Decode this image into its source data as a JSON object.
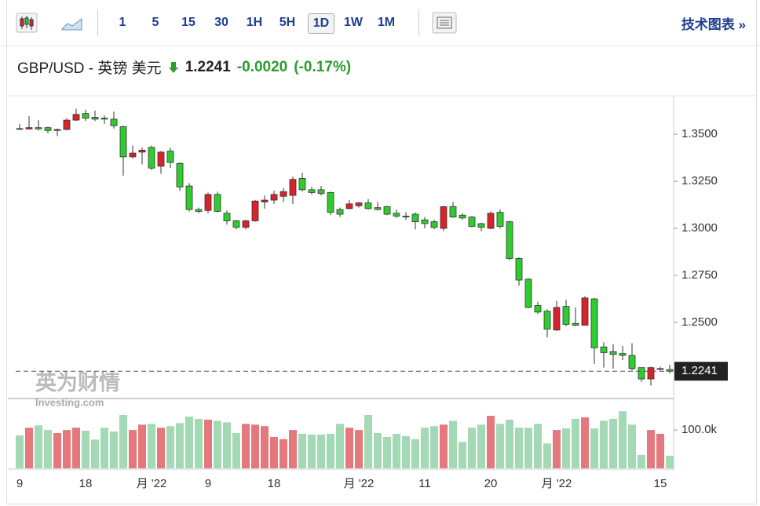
{
  "toolbar": {
    "intervals": [
      "1",
      "5",
      "15",
      "30",
      "1H",
      "5H",
      "1D",
      "1W",
      "1M"
    ],
    "active": "1D",
    "tech_link": "技术图表 »"
  },
  "header": {
    "symbol": "GBP/USD - 英镑 美元",
    "change": "-0.0020",
    "change_pct": "(-0.17%)"
  },
  "watermark": {
    "brand": "英为财情",
    "site": "Investing.com"
  },
  "chart_data": {
    "type": "candlestick",
    "categories": [
      "9",
      null,
      null,
      null,
      null,
      null,
      null,
      "18",
      null,
      null,
      null,
      null,
      null,
      null,
      "月 '22",
      null,
      null,
      null,
      null,
      null,
      "9",
      null,
      null,
      null,
      null,
      null,
      null,
      "18",
      null,
      null,
      null,
      null,
      null,
      null,
      null,
      null,
      "月 '22",
      null,
      null,
      null,
      null,
      null,
      null,
      "11",
      null,
      null,
      null,
      null,
      null,
      null,
      "20",
      null,
      null,
      null,
      null,
      null,
      null,
      "月 '22",
      null,
      null,
      null,
      null,
      null,
      null,
      null,
      null,
      null,
      null,
      "15",
      null
    ],
    "open": [
      1.353,
      1.3528,
      1.3535,
      1.3535,
      1.352,
      1.3525,
      1.3575,
      1.361,
      1.359,
      1.3585,
      1.358,
      1.354,
      1.338,
      1.3405,
      1.343,
      1.333,
      1.341,
      1.3345,
      1.3225,
      1.31,
      1.3095,
      1.318,
      1.308,
      1.304,
      1.3005,
      1.304,
      1.314,
      1.315,
      1.317,
      1.3175,
      1.3265,
      1.3205,
      1.3205,
      1.319,
      1.31,
      1.3105,
      1.312,
      1.3135,
      1.311,
      1.3115,
      1.308,
      1.3065,
      1.3075,
      1.3045,
      1.3035,
      1.3,
      1.3115,
      1.307,
      1.306,
      1.3025,
      1.3,
      1.3085,
      1.3035,
      1.284,
      1.273,
      1.259,
      1.256,
      1.246,
      1.2585,
      1.2495,
      1.2485,
      1.2625,
      1.237,
      1.2345,
      1.2335,
      1.2325,
      1.226,
      1.22,
      1.2255,
      1.225
    ],
    "high": [
      1.3555,
      1.3595,
      1.3575,
      1.354,
      1.353,
      1.3585,
      1.3635,
      1.363,
      1.3625,
      1.36,
      1.362,
      1.3545,
      1.344,
      1.343,
      1.344,
      1.341,
      1.343,
      1.335,
      1.324,
      1.311,
      1.319,
      1.3195,
      1.3095,
      1.3045,
      1.3045,
      1.315,
      1.3175,
      1.32,
      1.3215,
      1.3275,
      1.3295,
      1.322,
      1.3225,
      1.3195,
      1.311,
      1.315,
      1.314,
      1.3155,
      1.314,
      1.312,
      1.31,
      1.3085,
      1.3085,
      1.306,
      1.3045,
      1.312,
      1.314,
      1.308,
      1.3065,
      1.303,
      1.309,
      1.31,
      1.304,
      1.2845,
      1.2735,
      1.261,
      1.257,
      1.2615,
      1.262,
      1.258,
      1.264,
      1.263,
      1.2395,
      1.2385,
      1.2375,
      1.239,
      1.226,
      1.2265,
      1.2265,
      1.2275
    ],
    "low": [
      1.3522,
      1.3525,
      1.352,
      1.3505,
      1.349,
      1.352,
      1.357,
      1.357,
      1.357,
      1.3555,
      1.353,
      1.328,
      1.337,
      1.334,
      1.331,
      1.329,
      1.332,
      1.32,
      1.309,
      1.308,
      1.308,
      1.3085,
      1.302,
      1.2995,
      1.2995,
      1.3035,
      1.3105,
      1.313,
      1.314,
      1.313,
      1.3195,
      1.318,
      1.3175,
      1.307,
      1.306,
      1.31,
      1.311,
      1.31,
      1.3095,
      1.307,
      1.3055,
      1.3045,
      1.2995,
      1.3,
      1.2995,
      1.2985,
      1.3055,
      1.3045,
      1.3005,
      1.2985,
      1.2995,
      1.3,
      1.283,
      1.2695,
      1.2575,
      1.2545,
      1.242,
      1.2455,
      1.248,
      1.248,
      1.2485,
      1.228,
      1.226,
      1.2255,
      1.23,
      1.2245,
      1.2185,
      1.2165,
      1.2245,
      1.223
    ],
    "close": [
      1.3527,
      1.3535,
      1.3528,
      1.352,
      1.3525,
      1.3575,
      1.3605,
      1.3585,
      1.358,
      1.358,
      1.3545,
      1.338,
      1.34,
      1.3415,
      1.332,
      1.3405,
      1.335,
      1.322,
      1.31,
      1.309,
      1.318,
      1.309,
      1.304,
      1.3005,
      1.304,
      1.3145,
      1.315,
      1.318,
      1.3195,
      1.326,
      1.3205,
      1.319,
      1.3185,
      1.3085,
      1.3075,
      1.313,
      1.3135,
      1.3105,
      1.31,
      1.3075,
      1.3065,
      1.306,
      1.3035,
      1.3025,
      1.3005,
      1.3115,
      1.306,
      1.3055,
      1.301,
      1.3005,
      1.308,
      1.301,
      1.284,
      1.2725,
      1.258,
      1.2555,
      1.2465,
      1.258,
      1.249,
      1.2485,
      1.263,
      1.2365,
      1.234,
      1.233,
      1.2325,
      1.2255,
      1.22,
      1.226,
      1.2255,
      1.2241
    ],
    "volume": [
      86000,
      106000,
      112000,
      100000,
      92000,
      100000,
      106000,
      98000,
      75000,
      106000,
      96000,
      139000,
      100000,
      114000,
      116000,
      106000,
      110000,
      118000,
      135000,
      129000,
      127000,
      124000,
      120000,
      92000,
      116000,
      114000,
      110000,
      82000,
      76000,
      100000,
      90000,
      88000,
      88000,
      90000,
      116000,
      106000,
      100000,
      139000,
      92000,
      82000,
      90000,
      84000,
      76000,
      106000,
      110000,
      114000,
      124000,
      69000,
      106000,
      114000,
      137000,
      116000,
      127000,
      106000,
      106000,
      116000,
      65000,
      100000,
      104000,
      129000,
      133000,
      104000,
      124000,
      129000,
      149000,
      114000,
      35000,
      100000,
      90000,
      33000
    ],
    "ylim": [
      1.2096,
      1.3692
    ],
    "yticks": [
      {
        "value": 1.25,
        "label": "1.2500"
      },
      {
        "value": 1.275,
        "label": "1.2750"
      },
      {
        "value": 1.3,
        "label": "1.3000"
      },
      {
        "value": 1.325,
        "label": "1.3250"
      },
      {
        "value": 1.35,
        "label": "1.3500"
      }
    ],
    "volume_ylim": [
      0,
      178000
    ],
    "volume_yticks": [
      {
        "value": 100000,
        "label": "100.0k"
      }
    ],
    "last_price": 1.2241,
    "up_color": "#d9222a",
    "down_color": "#2fcb2f",
    "volume_up_color": "#e4787c",
    "volume_down_color": "#a3d9b5"
  }
}
